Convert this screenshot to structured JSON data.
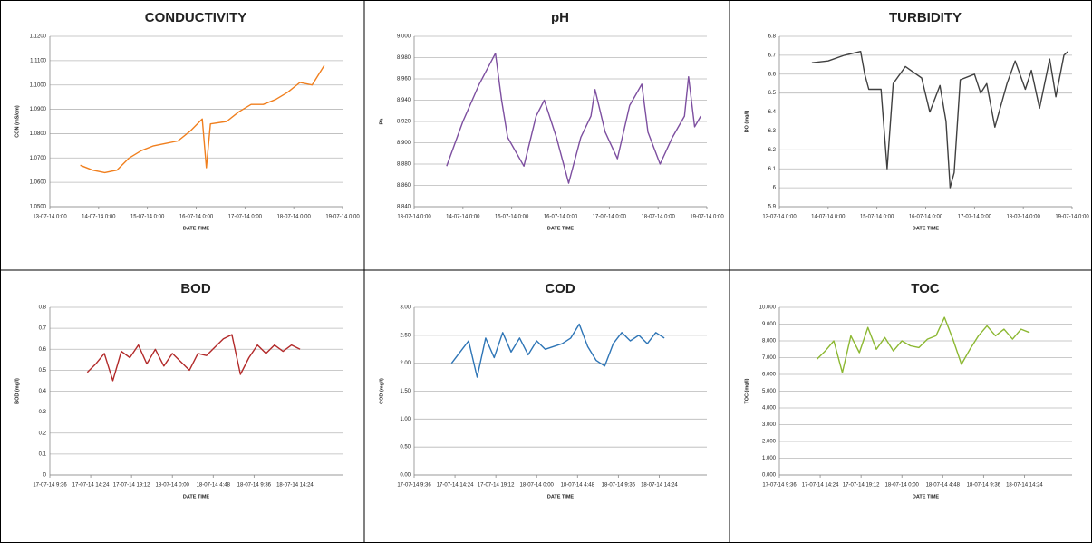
{
  "chart_data": [
    {
      "type": "line",
      "title": "CONDUCTIVITY",
      "x_label": "DATE TIME",
      "y_label": "CON (mS/cm)",
      "color": "#f07f1e",
      "grid": true,
      "x": [
        "13-07-14 15:00",
        "13-07-14 21:00",
        "14-07-14 3:00",
        "14-07-14 9:00",
        "14-07-14 15:00",
        "14-07-14 21:00",
        "15-07-14 3:00",
        "15-07-14 9:00",
        "15-07-14 15:00",
        "15-07-14 21:00",
        "16-07-14 3:00",
        "16-07-14 5:00",
        "16-07-14 7:00",
        "16-07-14 15:00",
        "16-07-14 21:00",
        "17-07-14 3:00",
        "17-07-14 9:00",
        "17-07-14 15:00",
        "17-07-14 21:00",
        "18-07-14 3:00",
        "18-07-14 9:00",
        "18-07-14 12:00",
        "18-07-14 15:00"
      ],
      "values": [
        1.067,
        1.065,
        1.064,
        1.065,
        1.07,
        1.073,
        1.075,
        1.076,
        1.077,
        1.081,
        1.086,
        1.066,
        1.084,
        1.085,
        1.089,
        1.092,
        1.092,
        1.094,
        1.097,
        1.101,
        1.1,
        1.104,
        1.108
      ],
      "xlim": [
        "13-07-14 0:00",
        "19-07-14 0:00"
      ],
      "xticks": [
        "13-07-14 0:00",
        "14-07-14 0:00",
        "15-07-14 0:00",
        "16-07-14 0:00",
        "17-07-14 0:00",
        "18-07-14 0:00",
        "19-07-14 0:00"
      ],
      "ylim": [
        1.05,
        1.12
      ],
      "yticks": [
        {
          "value": 1.05,
          "label": "1.0500"
        },
        {
          "value": 1.06,
          "label": "1.0600"
        },
        {
          "value": 1.07,
          "label": "1.0700"
        },
        {
          "value": 1.08,
          "label": "1.0800"
        },
        {
          "value": 1.09,
          "label": "1.0900"
        },
        {
          "value": 1.1,
          "label": "1.1000"
        },
        {
          "value": 1.11,
          "label": "1.1100"
        },
        {
          "value": 1.12,
          "label": "1.1200"
        }
      ]
    },
    {
      "type": "line",
      "title": "pH",
      "x_label": "DATE TIME",
      "y_label": "Ph",
      "color": "#7d4fa0",
      "grid": true,
      "x": [
        "13-07-14 16:00",
        "14-07-14 0:00",
        "14-07-14 8:00",
        "14-07-14 16:00",
        "14-07-14 19:00",
        "14-07-14 22:00",
        "15-07-14 6:00",
        "15-07-14 12:00",
        "15-07-14 16:00",
        "15-07-14 22:00",
        "16-07-14 4:00",
        "16-07-14 10:00",
        "16-07-14 15:00",
        "16-07-14 17:00",
        "16-07-14 22:00",
        "17-07-14 4:00",
        "17-07-14 10:00",
        "17-07-14 16:00",
        "17-07-14 19:00",
        "18-07-14 1:00",
        "18-07-14 7:00",
        "18-07-14 13:00",
        "18-07-14 15:00",
        "18-07-14 18:00",
        "18-07-14 21:00"
      ],
      "values": [
        8.878,
        8.92,
        8.955,
        8.984,
        8.94,
        8.905,
        8.878,
        8.925,
        8.94,
        8.905,
        8.862,
        8.905,
        8.925,
        8.95,
        8.91,
        8.885,
        8.935,
        8.955,
        8.91,
        8.88,
        8.905,
        8.925,
        8.962,
        8.915,
        8.925
      ],
      "xlim": [
        "13-07-14 0:00",
        "19-07-14 0:00"
      ],
      "xticks": [
        "13-07-14 0:00",
        "14-07-14 0:00",
        "15-07-14 0:00",
        "16-07-14 0:00",
        "17-07-14 0:00",
        "18-07-14 0:00",
        "19-07-14 0:00"
      ],
      "ylim": [
        8.84,
        9.0
      ],
      "yticks": [
        {
          "value": 8.84,
          "label": "8.840"
        },
        {
          "value": 8.86,
          "label": "8.860"
        },
        {
          "value": 8.88,
          "label": "8.880"
        },
        {
          "value": 8.9,
          "label": "8.900"
        },
        {
          "value": 8.92,
          "label": "8.920"
        },
        {
          "value": 8.94,
          "label": "8.940"
        },
        {
          "value": 8.96,
          "label": "8.960"
        },
        {
          "value": 8.98,
          "label": "8.980"
        },
        {
          "value": 9.0,
          "label": "9.000"
        }
      ]
    },
    {
      "type": "line",
      "title": "TURBIDITY",
      "x_label": "DATE TIME",
      "y_label": "DO (mg/l)",
      "color": "#404040",
      "grid": true,
      "x": [
        "13-07-14 16:00",
        "14-07-14 0:00",
        "14-07-14 8:00",
        "14-07-14 16:00",
        "14-07-14 18:00",
        "14-07-14 20:00",
        "15-07-14 2:00",
        "15-07-14 5:00",
        "15-07-14 8:00",
        "15-07-14 14:00",
        "15-07-14 22:00",
        "16-07-14 2:00",
        "16-07-14 7:00",
        "16-07-14 10:00",
        "16-07-14 12:00",
        "16-07-14 14:00",
        "16-07-14 17:00",
        "17-07-14 0:00",
        "17-07-14 3:00",
        "17-07-14 6:00",
        "17-07-14 10:00",
        "17-07-14 16:00",
        "17-07-14 20:00",
        "18-07-14 1:00",
        "18-07-14 4:00",
        "18-07-14 8:00",
        "18-07-14 13:00",
        "18-07-14 16:00",
        "18-07-14 20:00",
        "18-07-14 22:00"
      ],
      "values": [
        6.66,
        6.67,
        6.7,
        6.72,
        6.6,
        6.52,
        6.52,
        6.1,
        6.55,
        6.64,
        6.58,
        6.4,
        6.54,
        6.35,
        6.0,
        6.08,
        6.57,
        6.6,
        6.5,
        6.55,
        6.32,
        6.55,
        6.67,
        6.52,
        6.62,
        6.42,
        6.68,
        6.48,
        6.7,
        6.72
      ],
      "xlim": [
        "13-07-14 0:00",
        "19-07-14 0:00"
      ],
      "xticks": [
        "13-07-14 0:00",
        "14-07-14 0:00",
        "15-07-14 0:00",
        "16-07-14 0:00",
        "17-07-14 0:00",
        "18-07-14 0:00",
        "19-07-14 0:00"
      ],
      "ylim": [
        5.9,
        6.8
      ],
      "yticks": [
        5.9,
        6,
        6.1,
        6.2,
        6.3,
        6.4,
        6.5,
        6.6,
        6.7,
        6.8
      ]
    },
    {
      "type": "line",
      "title": "BOD",
      "x_label": "DATE TIME",
      "y_label": "BOD (mg/l)",
      "color": "#b22a2a",
      "grid": true,
      "x": [
        "17-07-14 14:00",
        "17-07-14 15:00",
        "17-07-14 16:00",
        "17-07-14 17:00",
        "17-07-14 18:00",
        "17-07-14 19:00",
        "17-07-14 20:00",
        "17-07-14 21:00",
        "17-07-14 22:00",
        "17-07-14 23:00",
        "18-07-14 0:00",
        "18-07-14 1:00",
        "18-07-14 2:00",
        "18-07-14 3:00",
        "18-07-14 4:00",
        "18-07-14 5:00",
        "18-07-14 6:00",
        "18-07-14 7:00",
        "18-07-14 8:00",
        "18-07-14 9:00",
        "18-07-14 10:00",
        "18-07-14 11:00",
        "18-07-14 12:00",
        "18-07-14 13:00",
        "18-07-14 14:00",
        "18-07-14 15:00"
      ],
      "values": [
        0.49,
        0.53,
        0.58,
        0.45,
        0.59,
        0.56,
        0.62,
        0.53,
        0.6,
        0.52,
        0.58,
        0.54,
        0.5,
        0.58,
        0.57,
        0.61,
        0.65,
        0.67,
        0.48,
        0.56,
        0.62,
        0.58,
        0.62,
        0.59,
        0.62,
        0.6
      ],
      "xlim": [
        "17-07-14 9:36",
        "18-07-14 20:00"
      ],
      "xticks": [
        "17-07-14 9:36",
        "17-07-14 14:24",
        "17-07-14 19:12",
        "18-07-14 0:00",
        "18-07-14 4:48",
        "18-07-14 9:36",
        "18-07-14 14:24"
      ],
      "ylim": [
        0,
        0.8
      ],
      "yticks": [
        0,
        0.1,
        0.2,
        0.3,
        0.4,
        0.5,
        0.6,
        0.7,
        0.8
      ]
    },
    {
      "type": "line",
      "title": "COD",
      "x_label": "DATE TIME",
      "y_label": "COD (mg/l)",
      "color": "#2e75b6",
      "grid": true,
      "x": [
        "17-07-14 14:00",
        "17-07-14 15:00",
        "17-07-14 16:00",
        "17-07-14 17:00",
        "17-07-14 18:00",
        "17-07-14 19:00",
        "17-07-14 20:00",
        "17-07-14 21:00",
        "17-07-14 22:00",
        "17-07-14 23:00",
        "18-07-14 0:00",
        "18-07-14 1:00",
        "18-07-14 2:00",
        "18-07-14 3:00",
        "18-07-14 4:00",
        "18-07-14 5:00",
        "18-07-14 6:00",
        "18-07-14 7:00",
        "18-07-14 8:00",
        "18-07-14 9:00",
        "18-07-14 10:00",
        "18-07-14 11:00",
        "18-07-14 12:00",
        "18-07-14 13:00",
        "18-07-14 14:00",
        "18-07-14 15:00"
      ],
      "values": [
        2.0,
        2.2,
        2.4,
        1.75,
        2.45,
        2.1,
        2.55,
        2.2,
        2.45,
        2.15,
        2.4,
        2.25,
        2.3,
        2.35,
        2.45,
        2.7,
        2.3,
        2.05,
        1.95,
        2.35,
        2.55,
        2.4,
        2.5,
        2.35,
        2.55,
        2.45
      ],
      "xlim": [
        "17-07-14 9:36",
        "18-07-14 20:00"
      ],
      "xticks": [
        "17-07-14 9:36",
        "17-07-14 14:24",
        "17-07-14 19:12",
        "18-07-14 0:00",
        "18-07-14 4:48",
        "18-07-14 9:36",
        "18-07-14 14:24"
      ],
      "ylim": [
        0,
        3
      ],
      "yticks": [
        {
          "value": 0,
          "label": "0.00"
        },
        {
          "value": 0.5,
          "label": "0.50"
        },
        {
          "value": 1,
          "label": "1.00"
        },
        {
          "value": 1.5,
          "label": "1.50"
        },
        {
          "value": 2,
          "label": "2.00"
        },
        {
          "value": 2.5,
          "label": "2.50"
        },
        {
          "value": 3,
          "label": "3.00"
        }
      ]
    },
    {
      "type": "line",
      "title": "TOC",
      "x_label": "DATE TIME",
      "y_label": "TOC (mg/l)",
      "color": "#8cb832",
      "grid": true,
      "x": [
        "17-07-14 14:00",
        "17-07-14 15:00",
        "17-07-14 16:00",
        "17-07-14 17:00",
        "17-07-14 18:00",
        "17-07-14 19:00",
        "17-07-14 20:00",
        "17-07-14 21:00",
        "17-07-14 22:00",
        "17-07-14 23:00",
        "18-07-14 0:00",
        "18-07-14 1:00",
        "18-07-14 2:00",
        "18-07-14 3:00",
        "18-07-14 4:00",
        "18-07-14 5:00",
        "18-07-14 6:00",
        "18-07-14 7:00",
        "18-07-14 8:00",
        "18-07-14 9:00",
        "18-07-14 10:00",
        "18-07-14 11:00",
        "18-07-14 12:00",
        "18-07-14 13:00",
        "18-07-14 14:00",
        "18-07-14 15:00"
      ],
      "values": [
        6.9,
        7.4,
        8.0,
        6.1,
        8.3,
        7.3,
        8.8,
        7.5,
        8.2,
        7.4,
        8.0,
        7.7,
        7.6,
        8.1,
        8.3,
        9.4,
        8.1,
        6.6,
        7.5,
        8.3,
        8.9,
        8.3,
        8.7,
        8.1,
        8.7,
        8.5
      ],
      "xlim": [
        "17-07-14 9:36",
        "18-07-14 20:00"
      ],
      "xticks": [
        "17-07-14 9:36",
        "17-07-14 14:24",
        "17-07-14 19:12",
        "18-07-14 0:00",
        "18-07-14 4:48",
        "18-07-14 9:36",
        "18-07-14 14:24"
      ],
      "ylim": [
        0,
        10
      ],
      "yticks": [
        {
          "value": 0,
          "label": "0.000"
        },
        {
          "value": 1,
          "label": "1.000"
        },
        {
          "value": 2,
          "label": "2.000"
        },
        {
          "value": 3,
          "label": "3.000"
        },
        {
          "value": 4,
          "label": "4.000"
        },
        {
          "value": 5,
          "label": "5.000"
        },
        {
          "value": 6,
          "label": "6.000"
        },
        {
          "value": 7,
          "label": "7.000"
        },
        {
          "value": 8,
          "label": "8.000"
        },
        {
          "value": 9,
          "label": "9.000"
        },
        {
          "value": 10,
          "label": "10.000"
        }
      ]
    }
  ]
}
